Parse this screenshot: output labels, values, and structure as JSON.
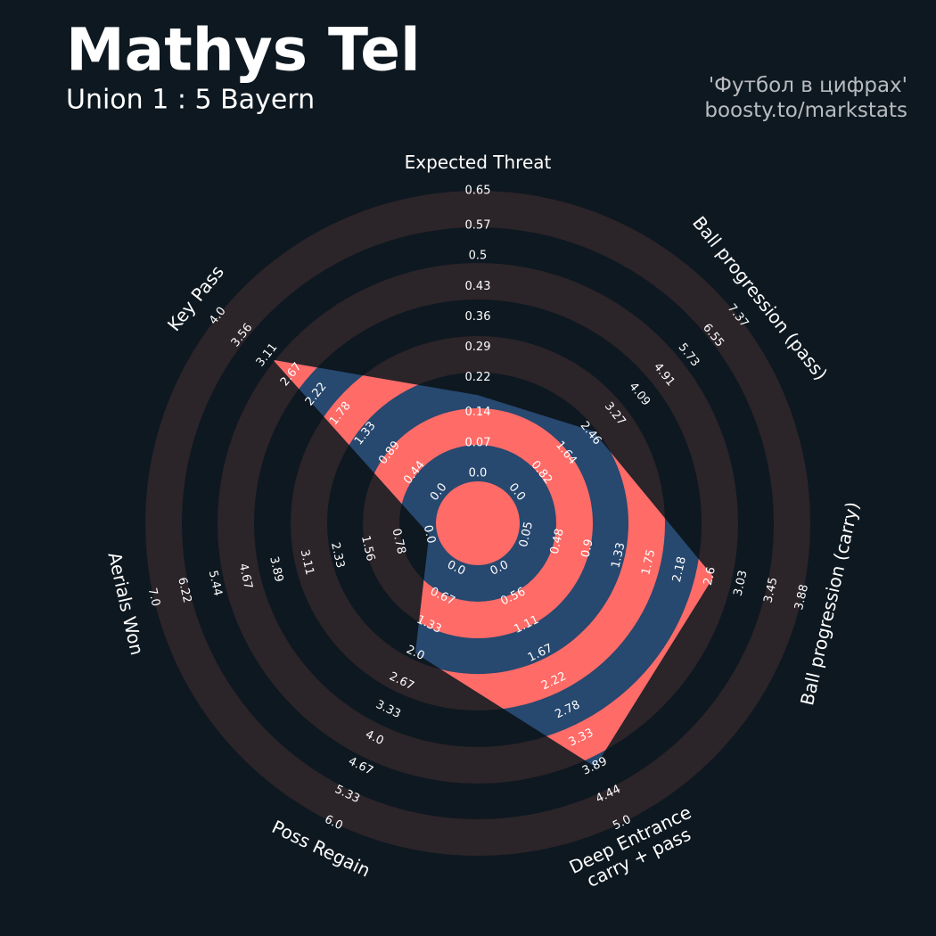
{
  "chart_data": {
    "type": "radar",
    "title": "Mathys Tel",
    "subtitle": "Union 1 : 5 Bayern",
    "credits": [
      "'Футбол в цифрах'",
      "boosty.to/markstats"
    ],
    "categories": [
      "Expected Threat",
      "Ball progression (pass)",
      "Ball progression (carry)",
      "Deep Entrance\ncarry + pass",
      "Poss Regain",
      "Aerials Won",
      "Key Pass"
    ],
    "values": [
      0.18,
      2.55,
      2.65,
      3.9,
      2.0,
      0,
      3.0
    ],
    "ranges": [
      [
        0,
        0.65
      ],
      [
        0,
        7.37
      ],
      [
        0.05,
        3.88
      ],
      [
        0,
        5.0
      ],
      [
        0,
        6.0
      ],
      [
        0,
        7.0
      ],
      [
        0,
        4.0
      ]
    ],
    "ticks": [
      [
        {
          "value": 0,
          "label": "0.0"
        },
        0.07,
        0.14,
        0.22,
        0.29,
        0.36,
        0.43,
        0.5,
        0.57,
        0.65
      ],
      [
        {
          "value": 0,
          "label": "0.0"
        },
        0.82,
        1.64,
        2.46,
        3.27,
        4.09,
        4.91,
        5.73,
        6.55,
        7.37
      ],
      [
        0.05,
        0.48,
        0.9,
        1.33,
        1.75,
        2.18,
        2.6,
        3.03,
        3.45,
        3.88
      ],
      [
        {
          "value": 0,
          "label": "0.0"
        },
        0.56,
        1.11,
        1.67,
        2.22,
        2.78,
        3.33,
        3.89,
        4.44,
        {
          "value": 5,
          "label": "5.0"
        }
      ],
      [
        {
          "value": 0,
          "label": "0.0"
        },
        0.67,
        1.33,
        {
          "value": 2,
          "label": "2.0"
        },
        2.67,
        3.33,
        {
          "value": 4,
          "label": "4.0"
        },
        4.67,
        5.33,
        {
          "value": 6,
          "label": "6.0"
        }
      ],
      [
        {
          "value": 0,
          "label": "0.0"
        },
        0.78,
        1.56,
        2.33,
        3.11,
        3.89,
        4.67,
        5.44,
        6.22,
        {
          "value": 7,
          "label": "7.0"
        }
      ],
      [
        {
          "value": 0,
          "label": "0.0"
        },
        0.44,
        0.89,
        1.33,
        1.78,
        2.22,
        2.67,
        3.11,
        3.56,
        {
          "value": 4,
          "label": "4.0"
        }
      ]
    ],
    "area_color": "#27486f",
    "ring_color": "#2b2429",
    "highlight_color": "#ff6b67"
  }
}
